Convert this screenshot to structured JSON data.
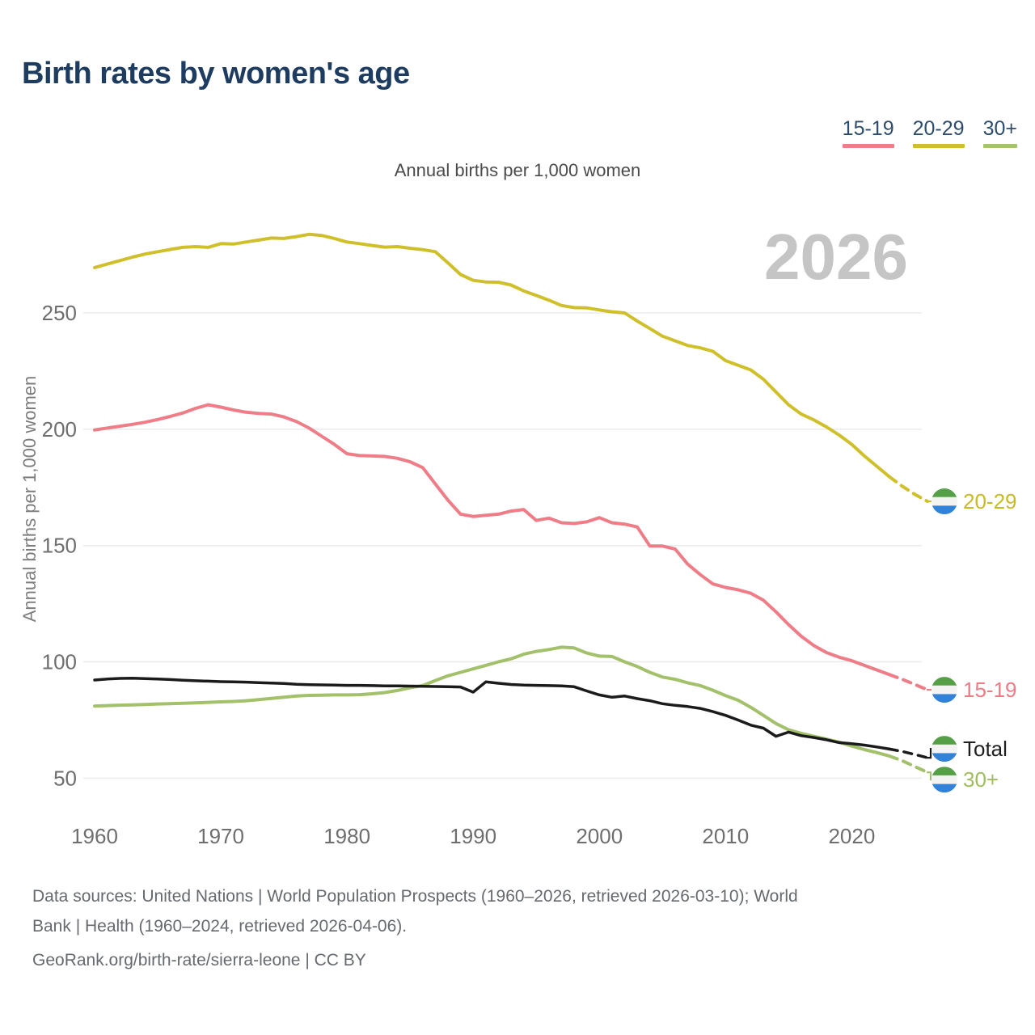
{
  "title": "Birth rates by women's age",
  "subtitle": "Annual births per 1,000 women",
  "watermark": "2026",
  "legend": [
    {
      "label": "15-19",
      "color": "#ef7c87"
    },
    {
      "label": "20-29",
      "color": "#d2be29"
    },
    {
      "label": "30+",
      "color": "#a6c46f"
    }
  ],
  "footer": {
    "line1": "Data sources: United Nations | World Population Prospects (1960–2026, retrieved 2026-03-10); World",
    "line2": "Bank | Health (1960–2024, retrieved 2026-04-06).",
    "attribution": "GeoRank.org/birth-rate/sierra-leone | CC BY"
  },
  "flag": {
    "name": "sierra-leone-flag",
    "stripe_colors": [
      "#55a046",
      "#f3f4f1",
      "#3182d8"
    ]
  },
  "chart_data": {
    "type": "line",
    "title": "Birth rates by women's age",
    "ylabel": "Annual births per 1,000 women",
    "xlabel": "",
    "x_start": 1960,
    "x_end": 2026,
    "dashed_from": 2023,
    "grid": true,
    "ylim": [
      40,
      295
    ],
    "y_ticks": [
      50,
      100,
      150,
      200,
      250
    ],
    "x_ticks": [
      1960,
      1970,
      1980,
      1990,
      2000,
      2010,
      2020
    ],
    "series": [
      {
        "name": "20-29",
        "color": "#cfc02b",
        "label_color": "#c9ba25",
        "end_label": "20-29",
        "label_dy": 0,
        "bracket": false,
        "values": [
          269.5,
          271,
          272.5,
          274,
          275.3,
          276.3,
          277.3,
          278.2,
          278.5,
          278.2,
          279.8,
          279.6,
          280.5,
          281.3,
          282.2,
          282,
          282.8,
          283.8,
          283.3,
          282,
          280.5,
          279.8,
          279,
          278.3,
          278.5,
          277.8,
          277.2,
          276.3,
          271.5,
          266.5,
          264,
          263.3,
          263.2,
          262,
          259.5,
          257.5,
          255.5,
          253.2,
          252.3,
          252.2,
          251.3,
          250.5,
          250,
          246.5,
          243.3,
          240,
          238,
          236,
          235,
          233.5,
          229.5,
          227.5,
          225.5,
          221.5,
          216,
          210.5,
          206.5,
          204,
          201,
          197.5,
          193.5,
          188.5,
          184,
          179.5,
          175.5,
          172,
          169
        ]
      },
      {
        "name": "15-19",
        "color": "#ee7d88",
        "label_color": "#ed7b86",
        "end_label": "15-19",
        "label_dy": 0,
        "bracket": false,
        "values": [
          199.7,
          200.5,
          201.3,
          202.1,
          203,
          204.2,
          205.5,
          207,
          209,
          210.5,
          209.5,
          208.3,
          207.3,
          206.8,
          206.5,
          205.3,
          203.3,
          200.5,
          197,
          193.5,
          189.5,
          188.7,
          188.5,
          188.3,
          187.5,
          186,
          183.5,
          176.5,
          169.5,
          163.5,
          162.5,
          163,
          163.5,
          164.8,
          165.5,
          160.8,
          161.8,
          159.8,
          159.5,
          160.2,
          162,
          159.8,
          159.2,
          158,
          149.8,
          149.8,
          148.5,
          142,
          137.5,
          133.5,
          132,
          131,
          129.5,
          126.5,
          121.5,
          116,
          111,
          107,
          104,
          102,
          100.5,
          98.5,
          96.5,
          94.5,
          92.5,
          90.3,
          88
        ]
      },
      {
        "name": "30+",
        "color": "#a3c06a",
        "label_color": "#9fbd60",
        "end_label": "30+",
        "label_dy": 9,
        "bracket": true,
        "values": [
          81,
          81.2,
          81.4,
          81.5,
          81.7,
          81.9,
          82,
          82.2,
          82.4,
          82.6,
          82.8,
          83,
          83.3,
          83.8,
          84.3,
          84.8,
          85.3,
          85.6,
          85.7,
          85.8,
          85.8,
          85.9,
          86.3,
          86.8,
          87.7,
          88.9,
          89.8,
          92,
          94,
          95.5,
          97,
          98.5,
          100,
          101.3,
          103.3,
          104.5,
          105.3,
          106.3,
          106,
          103.8,
          102.5,
          102.3,
          100,
          98,
          95.5,
          93.5,
          92.5,
          91,
          89.8,
          87.8,
          85.5,
          83.5,
          80.5,
          77,
          73.5,
          70.8,
          69.3,
          68,
          66.8,
          65.5,
          63.8,
          62.3,
          61,
          59.5,
          57.5,
          55,
          52.5
        ]
      },
      {
        "name": "Total",
        "color": "#1b1b1b",
        "label_color": "#1f1f1f",
        "end_label": "Total",
        "label_dy": -11,
        "bracket": true,
        "values": [
          92.2,
          92.6,
          92.9,
          93,
          92.8,
          92.6,
          92.4,
          92.1,
          91.9,
          91.7,
          91.5,
          91.4,
          91.3,
          91.1,
          90.9,
          90.7,
          90.4,
          90.2,
          90.1,
          90,
          89.9,
          89.9,
          89.8,
          89.7,
          89.7,
          89.6,
          89.5,
          89.4,
          89.3,
          89.2,
          87,
          91.4,
          90.8,
          90.3,
          90,
          89.9,
          89.8,
          89.7,
          89.3,
          87.5,
          85.8,
          84.8,
          85.3,
          84.2,
          83.3,
          82,
          81.3,
          80.8,
          80,
          78.6,
          77,
          75,
          72.8,
          71.5,
          68,
          69.8,
          68.3,
          67.5,
          66.5,
          65.3,
          64.8,
          64.2,
          63.4,
          62.5,
          61.5,
          60.2,
          58.8
        ]
      }
    ]
  }
}
